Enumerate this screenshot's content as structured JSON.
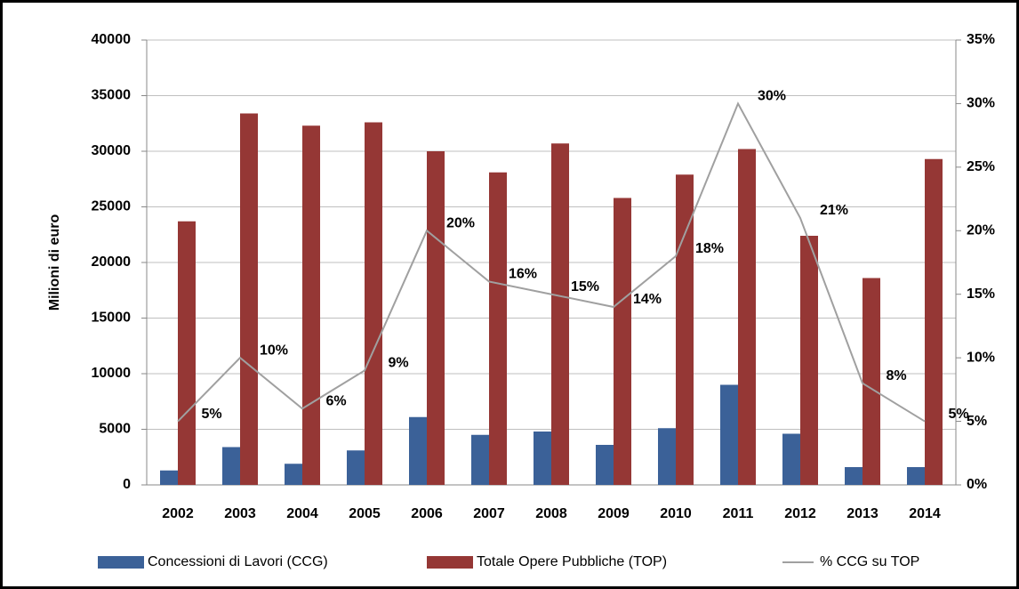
{
  "chart_data": {
    "type": "bar",
    "y_label": "Milioni di euro",
    "categories": [
      "2002",
      "2003",
      "2004",
      "2005",
      "2006",
      "2007",
      "2008",
      "2009",
      "2010",
      "2011",
      "2012",
      "2013",
      "2014"
    ],
    "series": [
      {
        "name": "Concessioni di Lavori (CCG)",
        "type": "bar",
        "color": "#3b6198",
        "values": [
          1300,
          3400,
          1900,
          3100,
          6100,
          4500,
          4800,
          3600,
          5100,
          9000,
          4600,
          1600,
          1600
        ]
      },
      {
        "name": "Totale Opere Pubbliche (TOP)",
        "type": "bar",
        "color": "#953735",
        "values": [
          23700,
          33400,
          32300,
          32600,
          30000,
          28100,
          30700,
          25800,
          27900,
          30200,
          22400,
          18600,
          29300
        ]
      },
      {
        "name": "% CCG su TOP",
        "type": "line",
        "axis": "y2",
        "color": "#a0a0a0",
        "values": [
          5,
          10,
          6,
          9,
          20,
          16,
          15,
          14,
          18,
          30,
          21,
          8,
          5
        ],
        "value_labels": [
          "5%",
          "10%",
          "6%",
          "9%",
          "20%",
          "16%",
          "15%",
          "14%",
          "18%",
          "30%",
          "21%",
          "8%",
          "5%"
        ]
      }
    ],
    "ylim": [
      0,
      40000
    ],
    "yticks": [
      0,
      5000,
      10000,
      15000,
      20000,
      25000,
      30000,
      35000,
      40000
    ],
    "y2lim": [
      0,
      35
    ],
    "y2ticks": [
      {
        "value": 0,
        "label": "0%"
      },
      {
        "value": 5,
        "label": "5%"
      },
      {
        "value": 10,
        "label": "10%"
      },
      {
        "value": 15,
        "label": "15%"
      },
      {
        "value": 20,
        "label": "20%"
      },
      {
        "value": 25,
        "label": "25%"
      },
      {
        "value": 30,
        "label": "30%"
      },
      {
        "value": 35,
        "label": "35%"
      }
    ],
    "grid": true
  }
}
